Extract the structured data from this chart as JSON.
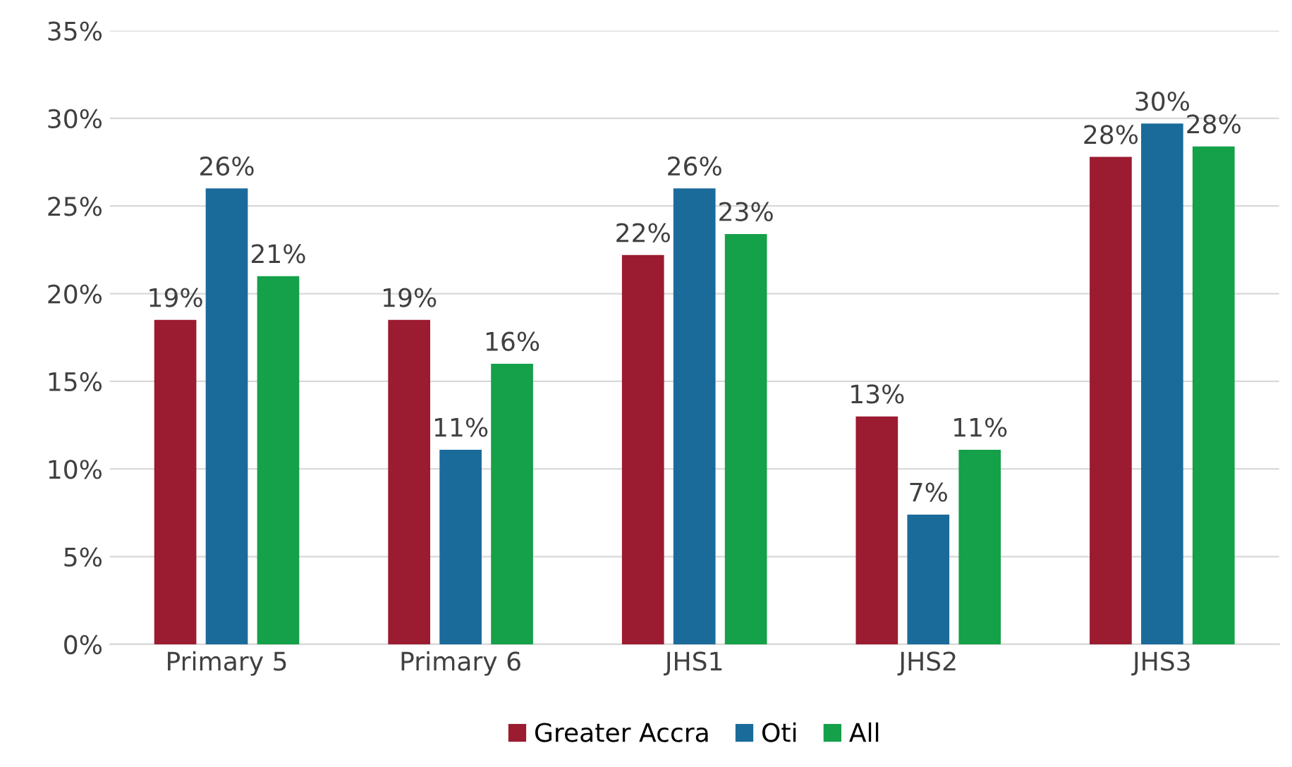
{
  "chart_data": {
    "type": "bar",
    "categories": [
      "Primary 5",
      "Primary 6",
      "JHS1",
      "JHS2",
      "JHS3"
    ],
    "series": [
      {
        "name": "Greater Accra",
        "color": "#9b1b30",
        "values": [
          18.5,
          18.5,
          22.2,
          13.0,
          27.8
        ],
        "value_labels": [
          "19%",
          "19%",
          "22%",
          "13%",
          "28%"
        ]
      },
      {
        "name": "Oti",
        "color": "#1a6b9a",
        "values": [
          26.0,
          11.1,
          26.0,
          7.4,
          29.7
        ],
        "value_labels": [
          "26%",
          "11%",
          "26%",
          "7%",
          "30%"
        ]
      },
      {
        "name": "All",
        "color": "#15a04a",
        "values": [
          21.0,
          16.0,
          23.4,
          11.1,
          28.4
        ],
        "value_labels": [
          "21%",
          "16%",
          "23%",
          "11%",
          "28%"
        ]
      }
    ],
    "ylim": [
      0,
      35
    ],
    "yticks": [
      {
        "value": 0,
        "label": "0%"
      },
      {
        "value": 5,
        "label": "5%"
      },
      {
        "value": 10,
        "label": "10%"
      },
      {
        "value": 15,
        "label": "15%"
      },
      {
        "value": 20,
        "label": "20%"
      },
      {
        "value": 25,
        "label": "25%"
      },
      {
        "value": 30,
        "label": "30%"
      },
      {
        "value": 35,
        "label": "35%"
      }
    ],
    "grid": "y",
    "legend": "bottom"
  }
}
